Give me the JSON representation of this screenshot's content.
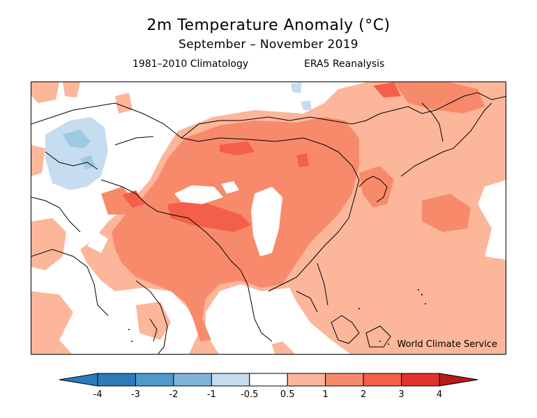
{
  "header": {
    "title": "2m Temperature Anomaly (°C)",
    "subtitle": "September – November 2019",
    "climatology": "1981–2010 Climatology",
    "source": "ERA5 Reanalysis"
  },
  "map": {
    "credit": "World Climate Service",
    "region": "Asia",
    "fill_levels": [
      {
        "range": "0.5–1",
        "color": "#fcb69a"
      },
      {
        "range": "1–2",
        "color": "#f88a6c"
      },
      {
        "range": "2–3",
        "color": "#f35f49"
      },
      {
        "range": "-1–-0.5",
        "color": "#c6dcf0"
      },
      {
        "range": "-2–-1",
        "color": "#9ec9e2"
      }
    ]
  },
  "colorbar": {
    "tick_labels": [
      "-4",
      "-3",
      "-2",
      "-1",
      "-0.5",
      "0.5",
      "1",
      "2",
      "3",
      "4"
    ],
    "colors": [
      "#2b7ab9",
      "#2b7ab9",
      "#4f9acb",
      "#7fb4d9",
      "#c6dcf0",
      "#ffffff",
      "#fcb69a",
      "#f88a6c",
      "#f35f49",
      "#e0322a",
      "#b81b1c"
    ]
  }
}
